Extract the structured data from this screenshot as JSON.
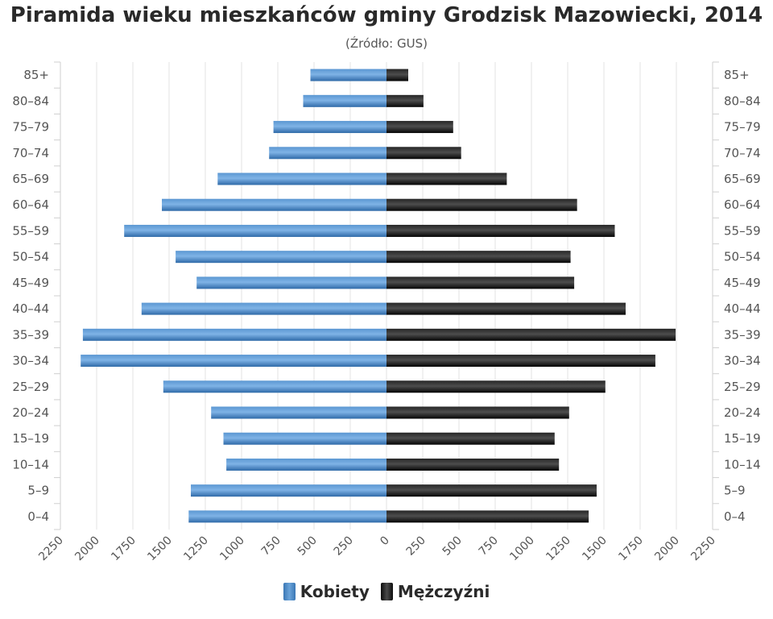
{
  "chart_data": {
    "type": "bar",
    "title": "Piramida wieku mieszkańców gminy Grodzisk Mazowiecki, 2014",
    "subtitle": "(Źródło: GUS)",
    "categories": [
      "0–4",
      "5–9",
      "10–14",
      "15–19",
      "20–24",
      "25–29",
      "30–34",
      "35–39",
      "40–44",
      "45–49",
      "50–54",
      "55–59",
      "60–64",
      "65–69",
      "70–74",
      "75–79",
      "80–84",
      "85+"
    ],
    "series": [
      {
        "name": "Kobiety",
        "color": "#4a86c5",
        "values": [
          1365,
          1350,
          1105,
          1125,
          1210,
          1540,
          2110,
          2095,
          1690,
          1310,
          1455,
          1810,
          1550,
          1165,
          810,
          780,
          575,
          525
        ]
      },
      {
        "name": "Mężczyźni",
        "color": "#1a1a1a",
        "values": [
          1395,
          1450,
          1190,
          1160,
          1260,
          1510,
          1855,
          1995,
          1650,
          1295,
          1270,
          1575,
          1315,
          830,
          515,
          460,
          255,
          150
        ]
      }
    ],
    "xlim": [
      -2250,
      2250
    ],
    "xticks": [
      "2250",
      "2000",
      "1750",
      "1500",
      "1250",
      "1000",
      "750",
      "500",
      "250",
      "0",
      "250",
      "500",
      "750",
      "1000",
      "1250",
      "1500",
      "1750",
      "2000",
      "2250"
    ],
    "grid": true,
    "legend": "bottom"
  },
  "legend": {
    "women_label": "Kobiety",
    "men_label": "Mężczyźni"
  }
}
